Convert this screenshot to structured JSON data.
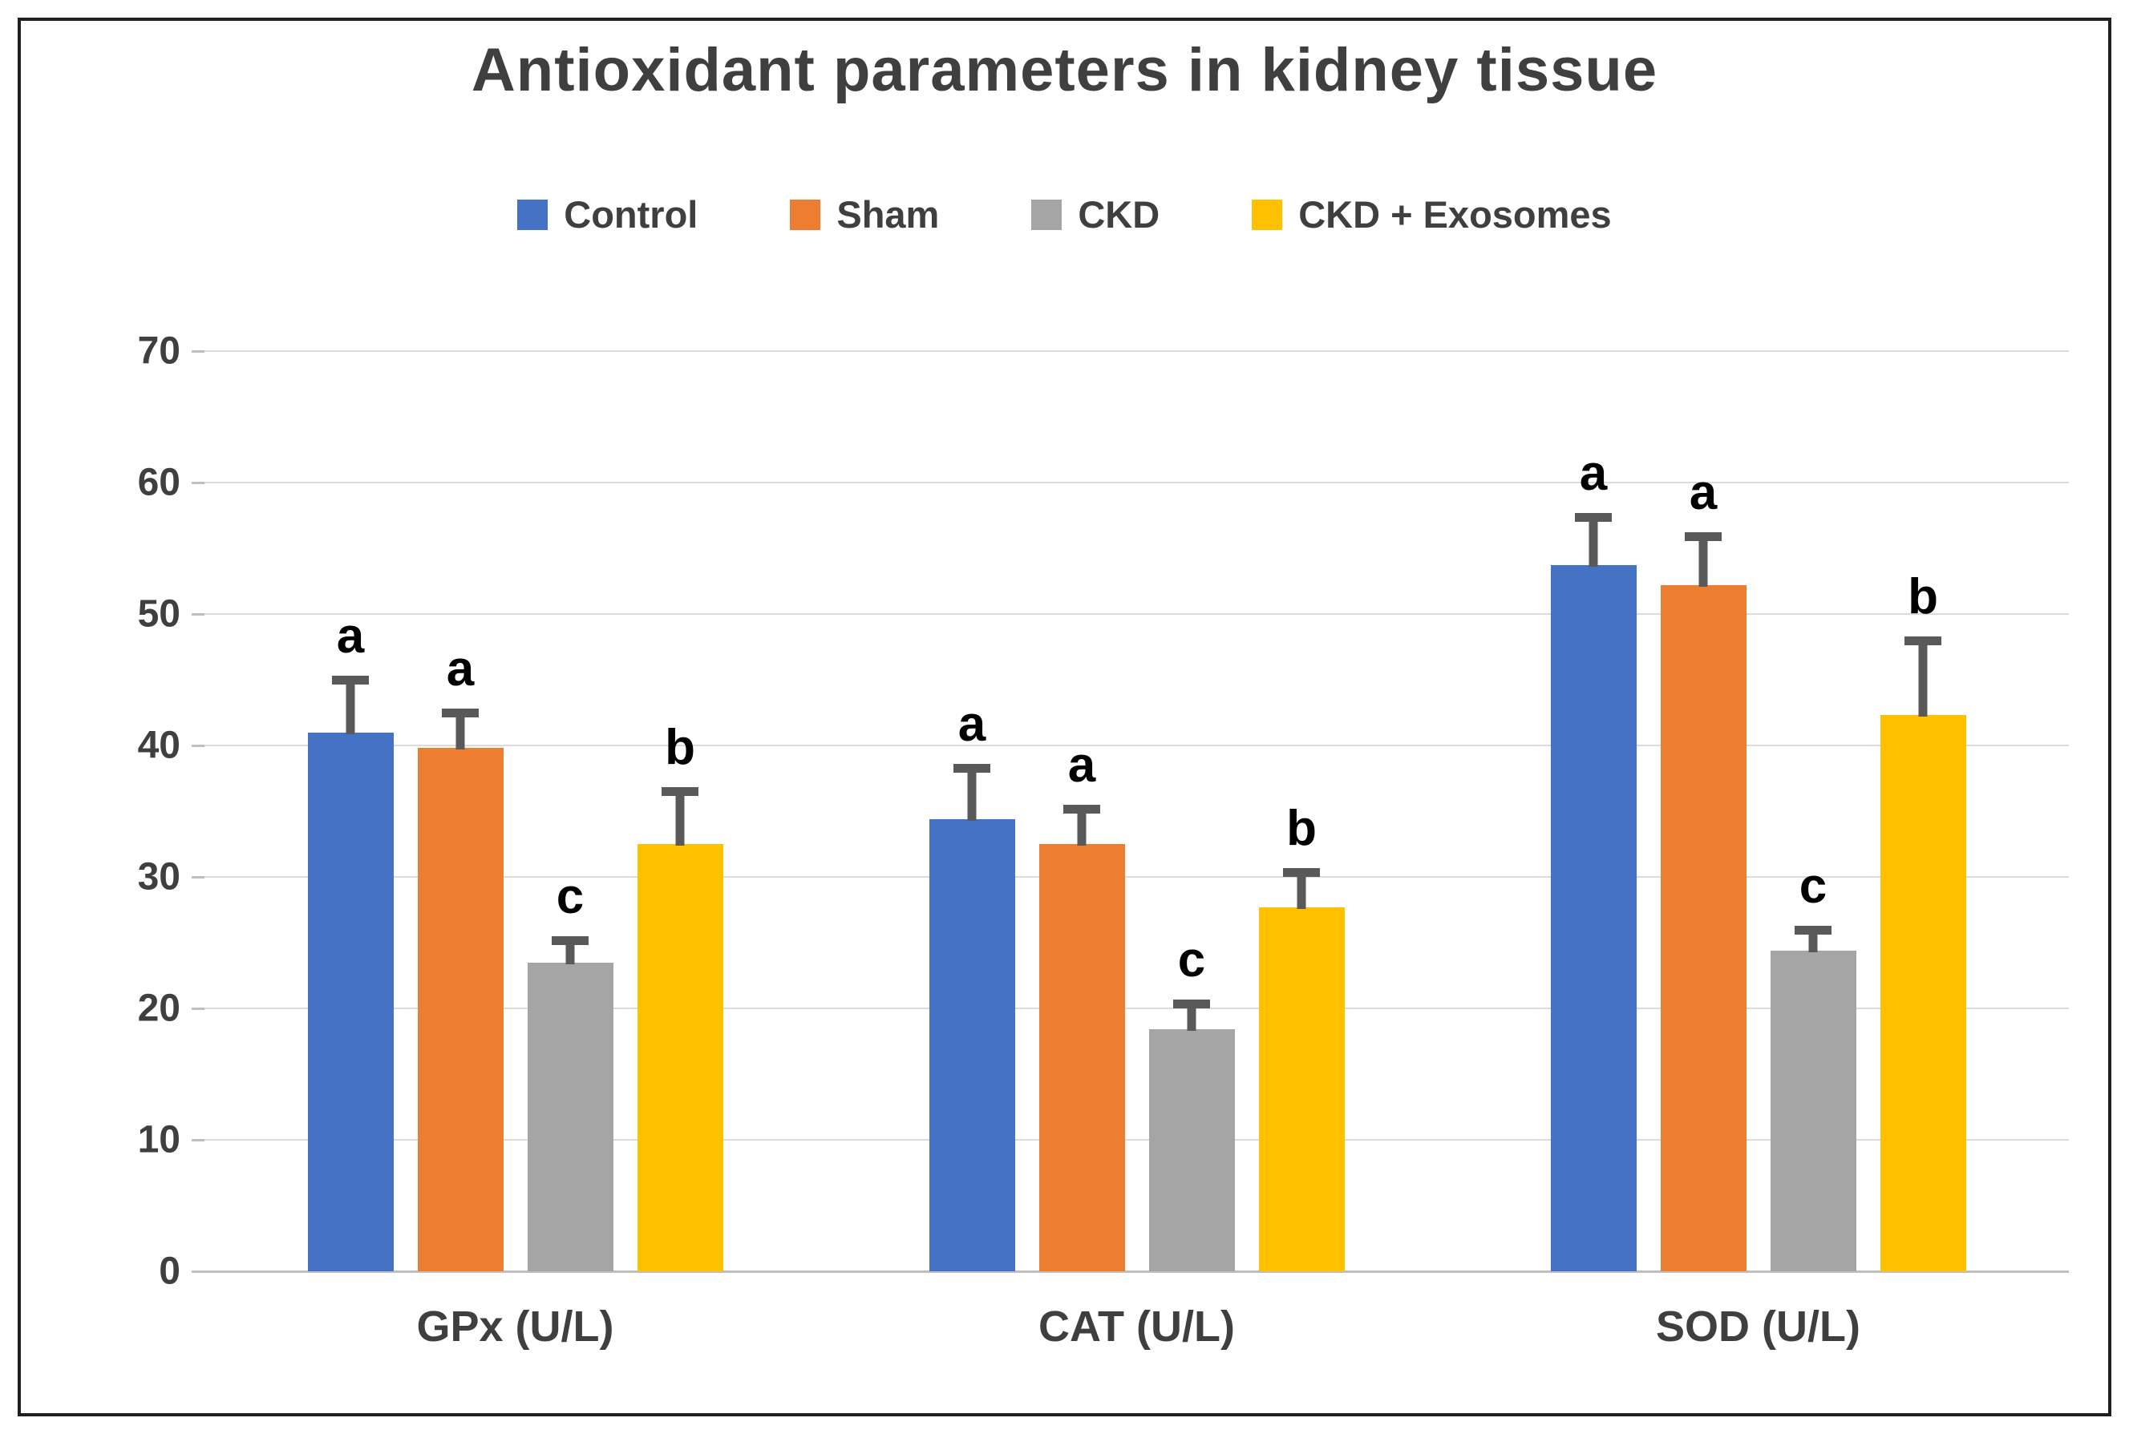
{
  "chart_data": {
    "type": "bar",
    "title": "Antioxidant parameters in kidney tissue",
    "xlabel": "",
    "ylabel": "",
    "categories": [
      "GPx (U/L)",
      "CAT (U/L)",
      "SOD (U/L)"
    ],
    "series": [
      {
        "name": "Control",
        "color": "#4472C4",
        "values": [
          41.0,
          34.4,
          53.7
        ],
        "errors": [
          4.3,
          4.2,
          4.0
        ],
        "letters": [
          "a",
          "a",
          "a"
        ]
      },
      {
        "name": "Sham",
        "color": "#ED7D31",
        "values": [
          39.8,
          32.5,
          52.2
        ],
        "errors": [
          3.0,
          3.0,
          4.0
        ],
        "letters": [
          "a",
          "a",
          "a"
        ]
      },
      {
        "name": "CKD",
        "color": "#A5A5A5",
        "values": [
          23.5,
          18.4,
          24.4
        ],
        "errors": [
          2.0,
          2.3,
          1.9
        ],
        "letters": [
          "c",
          "c",
          "c"
        ]
      },
      {
        "name": "CKD + Exosomes",
        "color": "#FFC000",
        "values": [
          32.5,
          27.7,
          42.3
        ],
        "errors": [
          4.3,
          3.0,
          6.0
        ],
        "letters": [
          "b",
          "b",
          "b"
        ]
      }
    ],
    "ylim": [
      0,
      70
    ],
    "yticks": [
      0,
      10,
      20,
      30,
      40,
      50,
      60,
      70
    ],
    "grid": true,
    "legend_position": "top",
    "error_bar_color": "#595959",
    "gridline_color": "#dcdcdc",
    "axis_line_color": "#bfbfbf",
    "text_color": "#3f3f3f",
    "letter_color": "#000000"
  }
}
